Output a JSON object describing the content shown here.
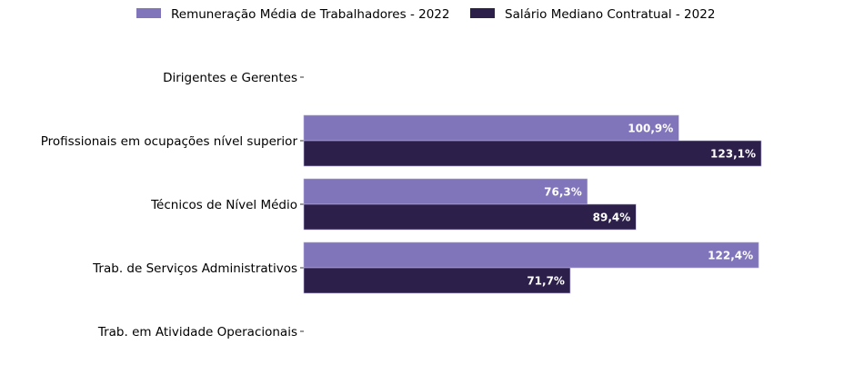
{
  "chart_data": {
    "type": "bar",
    "orientation": "horizontal",
    "categories": [
      "Dirigentes e Gerentes",
      "Profissionais em ocupações nível superior",
      "Técnicos de Nível Médio",
      "Trab. de Serviços Administrativos",
      "Trab. em Atividade Operacionais"
    ],
    "series": [
      {
        "name": "Remuneração Média de Trabalhadores - 2022",
        "color": "#8074bb",
        "values": [
          null,
          100.9,
          76.3,
          122.4,
          null
        ],
        "labels": [
          "",
          "100,9%",
          "76,3%",
          "122,4%",
          ""
        ]
      },
      {
        "name": "Salário Mediano Contratual - 2022",
        "color": "#2c1f4a",
        "values": [
          null,
          123.1,
          89.4,
          71.7,
          null
        ],
        "labels": [
          "",
          "123,1%",
          "89,4%",
          "71,7%",
          ""
        ]
      }
    ],
    "xlim": [
      0,
      123.1
    ],
    "legend": "top-center",
    "grid": false,
    "xaxis_visible": false
  }
}
